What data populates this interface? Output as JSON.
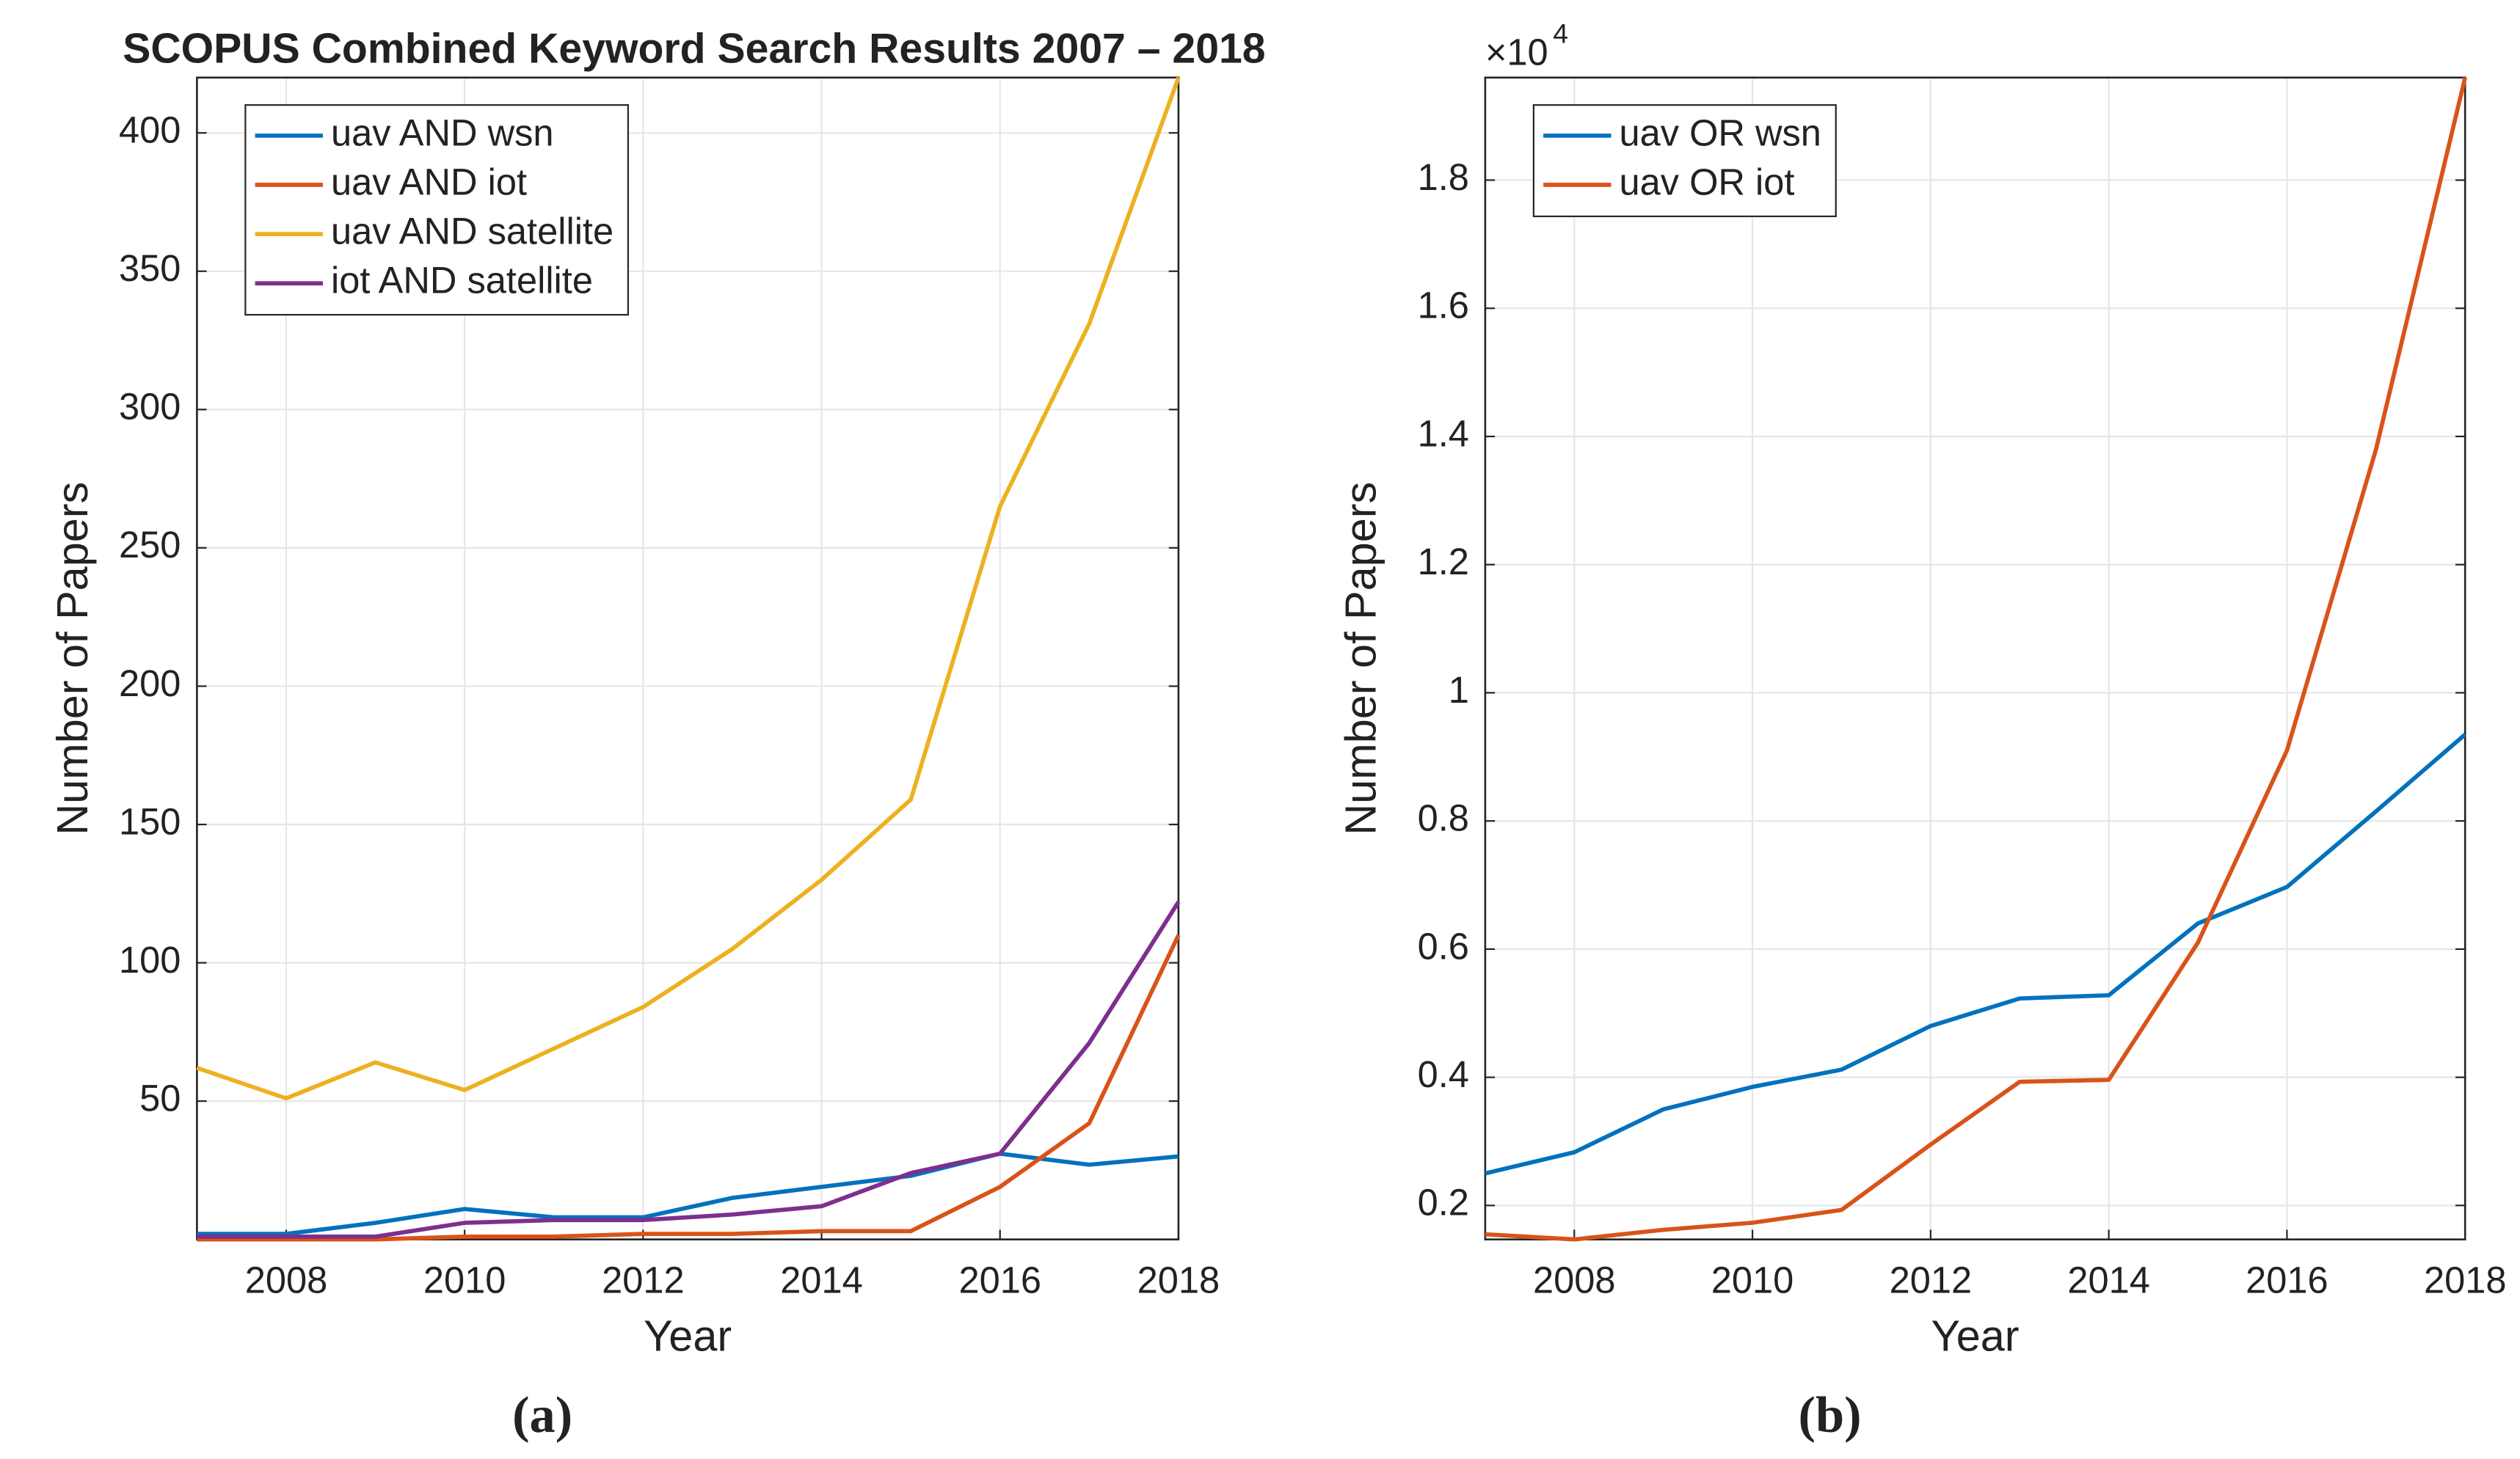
{
  "chart_data": [
    {
      "type": "line",
      "title": "SCOPUS Combined Keyword Search Results 2007 – 2018",
      "xlabel": "Year",
      "ylabel": "Number of Papers",
      "caption": "(a)",
      "x": [
        2007,
        2008,
        2009,
        2010,
        2011,
        2012,
        2013,
        2014,
        2015,
        2016,
        2017,
        2018
      ],
      "series": [
        {
          "name": "uav AND wsn",
          "color": "#0072bd",
          "values": [
            2,
            2,
            6,
            11,
            8,
            8,
            15,
            19,
            23,
            31,
            27,
            30
          ]
        },
        {
          "name": "uav AND iot",
          "color": "#d95319",
          "values": [
            0,
            0,
            0,
            1,
            1,
            2,
            2,
            3,
            3,
            19,
            42,
            110
          ]
        },
        {
          "name": "uav AND satellite",
          "color": "#edb120",
          "values": [
            62,
            51,
            64,
            54,
            69,
            84,
            105,
            130,
            159,
            265,
            331,
            420
          ]
        },
        {
          "name": "iot AND satellite",
          "color": "#7e2f8e",
          "values": [
            1,
            1,
            1,
            6,
            7,
            7,
            9,
            12,
            24,
            31,
            71,
            122
          ]
        }
      ],
      "xlim": [
        2007,
        2018
      ],
      "ylim": [
        0,
        420
      ],
      "xticks": [
        2008,
        2010,
        2012,
        2014,
        2016,
        2018
      ],
      "yticks": [
        50,
        100,
        150,
        200,
        250,
        300,
        350,
        400
      ],
      "grid": true,
      "legend": "northwest"
    },
    {
      "type": "line",
      "xlabel": "Year",
      "ylabel": "Number of Papers",
      "caption": "(b)",
      "y_multiplier": "×10",
      "y_exponent": "4",
      "x": [
        2007,
        2008,
        2009,
        2010,
        2011,
        2012,
        2013,
        2014,
        2015,
        2016,
        2017,
        2018
      ],
      "series": [
        {
          "name": "uav OR wsn",
          "color": "#0072bd",
          "values": [
            0.25,
            0.283,
            0.35,
            0.385,
            0.412,
            0.48,
            0.523,
            0.528,
            0.64,
            0.697,
            0.815,
            0.935
          ]
        },
        {
          "name": "uav OR iot",
          "color": "#d95319",
          "values": [
            0.155,
            0.147,
            0.162,
            0.173,
            0.193,
            0.295,
            0.393,
            0.396,
            0.61,
            0.91,
            1.38,
            1.96
          ]
        }
      ],
      "xlim": [
        2007,
        2018
      ],
      "ylim": [
        0.147,
        1.96
      ],
      "xticks": [
        2008,
        2010,
        2012,
        2014,
        2016,
        2018
      ],
      "yticks": [
        0.2,
        0.4,
        0.6,
        0.8,
        1,
        1.2,
        1.4,
        1.6,
        1.8
      ],
      "grid": true,
      "legend": "northwest"
    }
  ]
}
